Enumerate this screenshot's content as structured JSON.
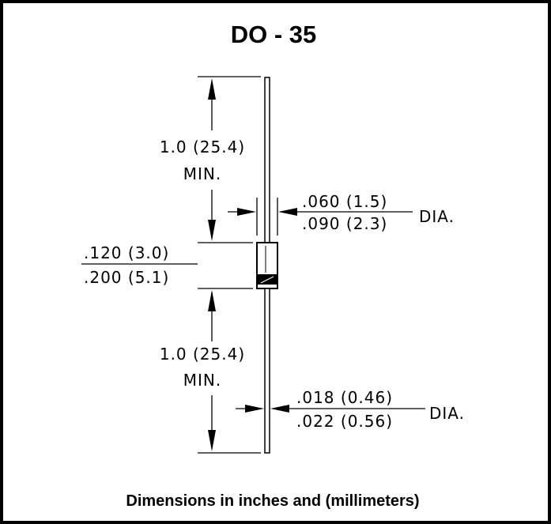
{
  "title": "DO - 35",
  "footer": "Dimensions in inches and (millimeters)",
  "dimensions": {
    "lead_length_top": {
      "value": "1.0 (25.4)",
      "qualifier": "MIN."
    },
    "body_diameter": {
      "min": ".060 (1.5)",
      "max": ".090 (2.3)",
      "suffix": "DIA."
    },
    "body_length": {
      "min": ".120 (3.0)",
      "max": ".200 (5.1)"
    },
    "lead_length_bottom": {
      "value": "1.0 (25.4)",
      "qualifier": "MIN."
    },
    "lead_diameter": {
      "min": ".018 (0.46)",
      "max": ".022 (0.56)",
      "suffix": "DIA."
    }
  }
}
